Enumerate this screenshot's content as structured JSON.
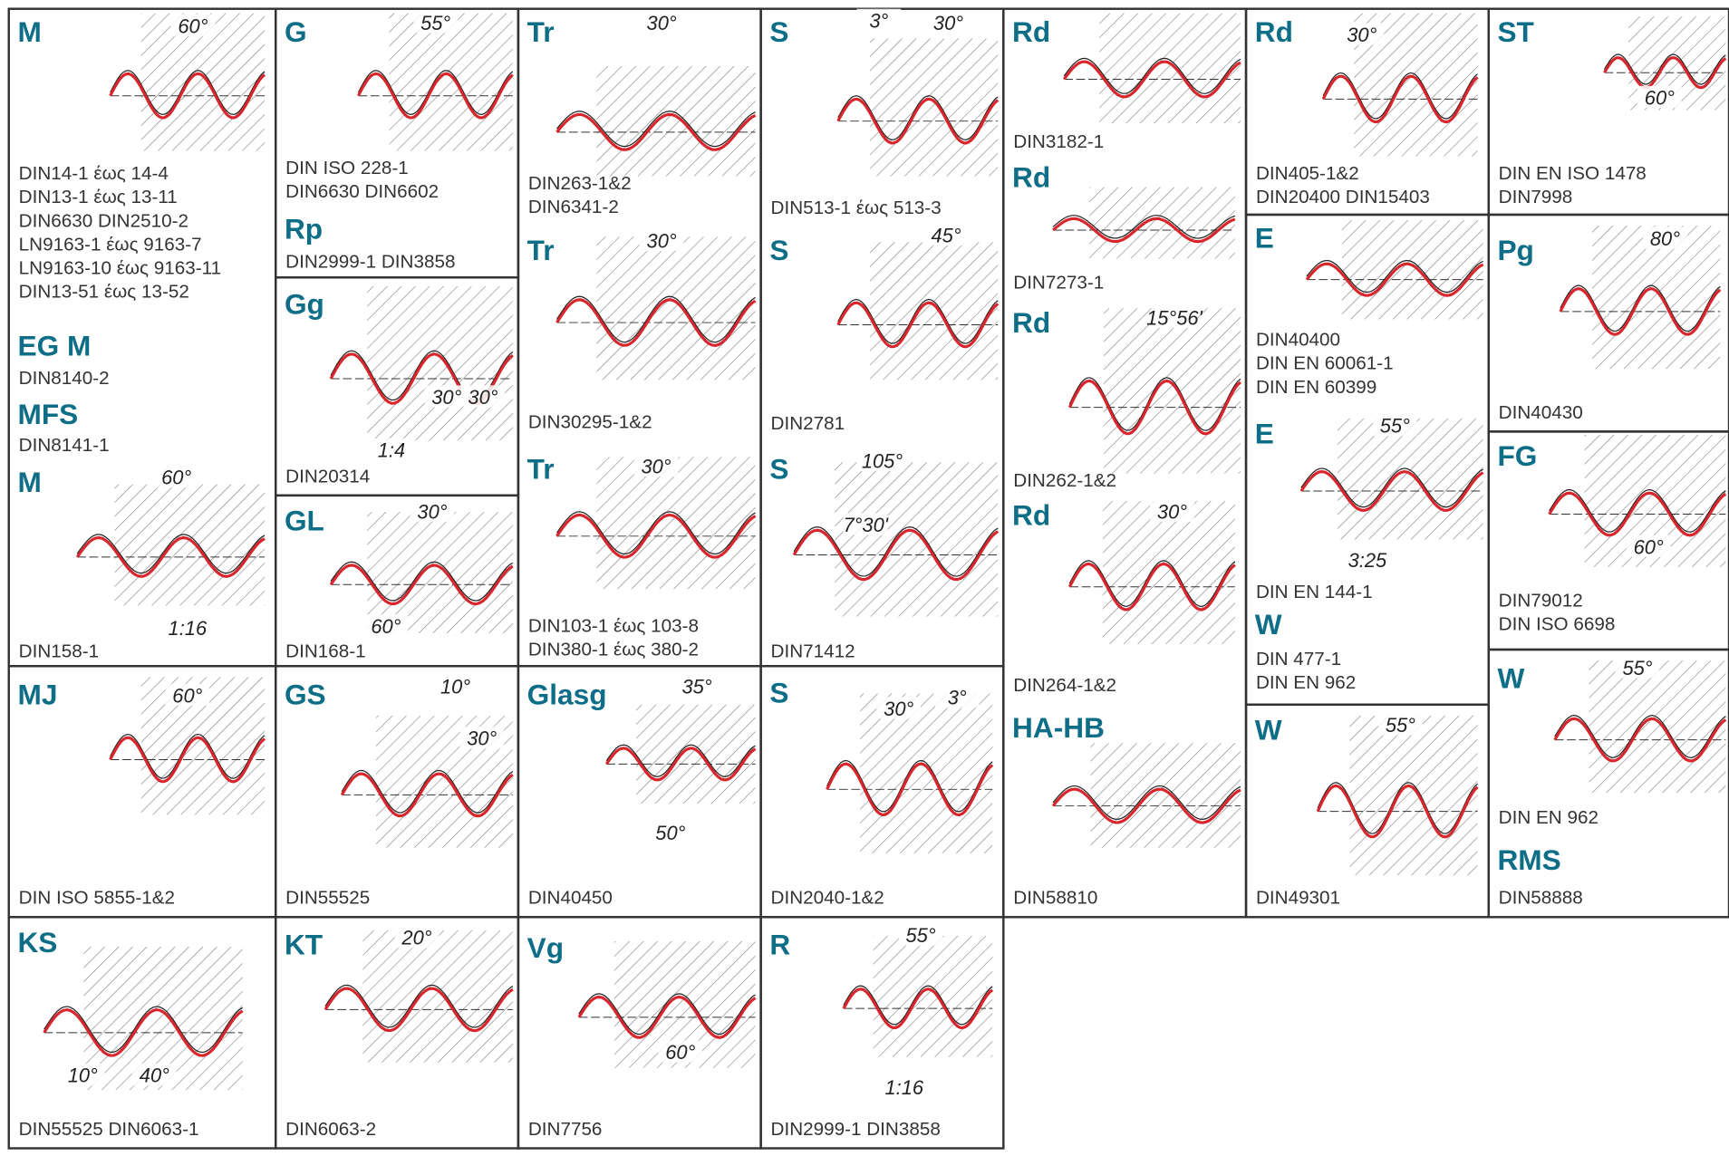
{
  "cells": [
    {
      "items": [
        {
          "code": "M",
          "standards": [
            "DIN14-1 έως 14-4",
            "DIN13-1 έως 13-11",
            "DIN6630 DIN2510-2",
            "LN9163-1 έως 9163-7",
            "LN9163-10 έως 9163-11",
            "DIN13-51 έως 13-52"
          ]
        },
        {
          "code": "EG M",
          "standards": [
            "DIN8140-2"
          ]
        },
        {
          "code": "MFS",
          "standards": [
            "DIN8141-1"
          ]
        },
        {
          "code": "M",
          "standards": [
            "DIN158-1"
          ]
        }
      ],
      "labels": [
        "60°",
        "60°",
        "1:16"
      ]
    },
    {
      "items": [
        {
          "code": "MJ",
          "standards": [
            "DIN ISO 5855-1&2"
          ]
        }
      ],
      "labels": [
        "60°"
      ]
    },
    {
      "items": [
        {
          "code": "KS",
          "standards": [
            "DIN55525 DIN6063-1"
          ]
        }
      ],
      "labels": [
        "10°",
        "40°"
      ]
    },
    {
      "items": [
        {
          "code": "G",
          "standards": [
            "DIN ISO 228-1",
            "DIN6630 DIN6602"
          ]
        },
        {
          "code": "Rp",
          "standards": [
            "DIN2999-1 DIN3858"
          ]
        }
      ],
      "labels": [
        "55°"
      ]
    },
    {
      "items": [
        {
          "code": "Gg",
          "standards": [
            "DIN20314"
          ]
        }
      ],
      "labels": [
        "30°",
        "30°",
        "1:4"
      ]
    },
    {
      "items": [
        {
          "code": "GL",
          "standards": [
            "DIN168-1"
          ]
        }
      ],
      "labels": [
        "30°",
        "60°"
      ]
    },
    {
      "items": [
        {
          "code": "GS",
          "standards": [
            "DIN55525"
          ]
        }
      ],
      "labels": [
        "10°",
        "30°"
      ]
    },
    {
      "items": [
        {
          "code": "KT",
          "standards": [
            "DIN6063-2"
          ]
        }
      ],
      "labels": [
        "20°"
      ]
    },
    {
      "items": [
        {
          "code": "Tr",
          "standards": [
            "DIN263-1&2",
            "DIN6341-2"
          ]
        },
        {
          "code": "Tr",
          "standards": [
            "DIN30295-1&2"
          ]
        },
        {
          "code": "Tr",
          "standards": [
            "DIN103-1 έως 103-8",
            "DIN380-1 έως 380-2"
          ]
        }
      ],
      "labels": [
        "30°",
        "30°",
        "30°"
      ]
    },
    {
      "items": [
        {
          "code": "Glasg",
          "standards": [
            "DIN40450"
          ]
        }
      ],
      "labels": [
        "35°",
        "50°"
      ]
    },
    {
      "items": [
        {
          "code": "Vg",
          "standards": [
            "DIN7756"
          ]
        }
      ],
      "labels": [
        "60°"
      ]
    },
    {
      "items": [
        {
          "code": "S",
          "standards": [
            "DIN513-1 έως 513-3"
          ]
        },
        {
          "code": "S",
          "standards": [
            "DIN2781"
          ]
        },
        {
          "code": "S",
          "standards": [
            "DIN71412"
          ]
        }
      ],
      "labels": [
        "3°",
        "30°",
        "45°",
        "105°",
        "7°30'"
      ]
    },
    {
      "items": [
        {
          "code": "S",
          "standards": [
            "DIN2040-1&2"
          ]
        }
      ],
      "labels": [
        "30°",
        "3°"
      ]
    },
    {
      "items": [
        {
          "code": "R",
          "standards": [
            "DIN2999-1 DIN3858"
          ]
        }
      ],
      "labels": [
        "55°",
        "1:16"
      ]
    },
    {
      "items": [
        {
          "code": "Rd",
          "standards": [
            "DIN3182-1"
          ]
        },
        {
          "code": "Rd",
          "standards": [
            "DIN7273-1"
          ]
        },
        {
          "code": "Rd",
          "standards": [
            "DIN262-1&2"
          ]
        },
        {
          "code": "Rd",
          "standards": [
            "DIN264-1&2"
          ]
        },
        {
          "code": "HA-HB",
          "standards": [
            "DIN58810"
          ]
        }
      ],
      "labels": [
        "15°56'",
        "30°"
      ]
    },
    {
      "items": [
        {
          "code": "Rd",
          "standards": [
            "DIN405-1&2",
            "DIN20400 DIN15403"
          ]
        }
      ],
      "labels": [
        "30°"
      ]
    },
    {
      "items": [
        {
          "code": "E",
          "standards": [
            "DIN40400",
            "DIN EN 60061-1",
            "DIN EN 60399"
          ]
        },
        {
          "code": "E",
          "standards": [
            "DIN EN 144-1"
          ]
        },
        {
          "code": "W",
          "standards": [
            "DIN 477-1",
            "DIN EN 962"
          ]
        }
      ],
      "labels": [
        "55°",
        "3:25"
      ]
    },
    {
      "items": [
        {
          "code": "W",
          "standards": [
            "DIN49301"
          ]
        }
      ],
      "labels": [
        "55°"
      ]
    },
    {
      "items": [
        {
          "code": "ST",
          "standards": [
            "DIN EN ISO 1478",
            "DIN7998"
          ]
        }
      ],
      "labels": [
        "60°"
      ]
    },
    {
      "items": [
        {
          "code": "Pg",
          "standards": [
            "DIN40430"
          ]
        }
      ],
      "labels": [
        "80°"
      ]
    },
    {
      "items": [
        {
          "code": "FG",
          "standards": [
            "DIN79012",
            "DIN ISO 6698"
          ]
        }
      ],
      "labels": [
        "60°"
      ]
    },
    {
      "items": [
        {
          "code": "W",
          "standards": [
            "DIN EN 962"
          ]
        },
        {
          "code": "RMS",
          "standards": [
            "DIN58888"
          ]
        }
      ],
      "labels": [
        "55°"
      ]
    }
  ]
}
